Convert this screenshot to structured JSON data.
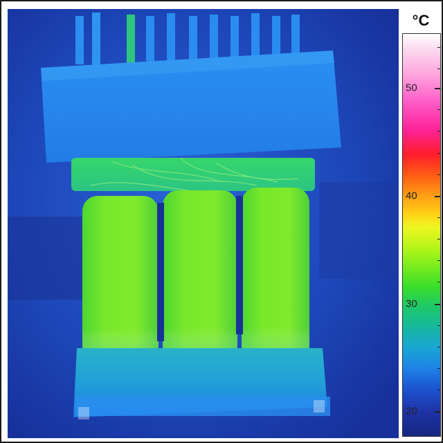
{
  "scale": {
    "unit": "°C",
    "ticks": [
      {
        "label": "50",
        "value": 50
      },
      {
        "label": "40",
        "value": 40
      },
      {
        "label": "30",
        "value": 30
      },
      {
        "label": "20",
        "value": 20
      }
    ],
    "range": [
      17,
      57
    ]
  },
  "colors": {
    "background_cold": "#1b3aa8",
    "housing": "#1f7fe6",
    "coil_warm": "#6ee42a",
    "frame": "#1a1a1a"
  }
}
